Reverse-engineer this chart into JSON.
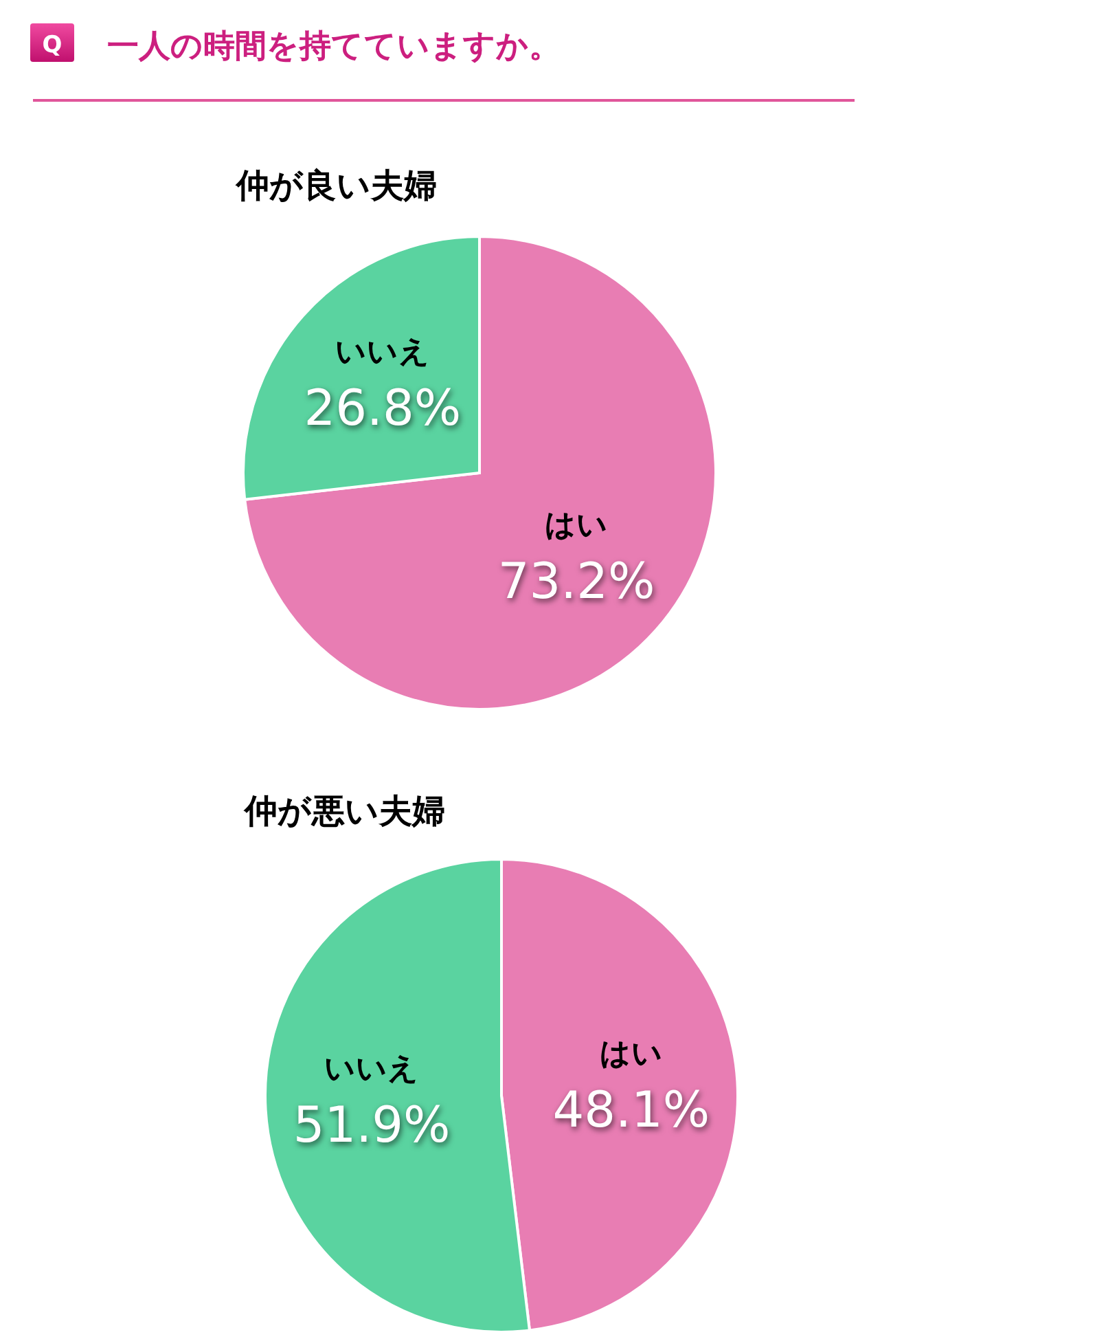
{
  "chart_data": [
    {
      "type": "other",
      "title": "一人の時間を持てていますか。",
      "annotations": [
        "Q"
      ]
    },
    {
      "type": "pie",
      "title": "仲が良い夫婦",
      "categories": [
        "はい",
        "いいえ"
      ],
      "values": [
        73.2,
        26.8
      ],
      "value_labels": [
        "73.2%",
        "26.8%"
      ],
      "colors": [
        "#e87db3",
        "#5ad3a0"
      ]
    },
    {
      "type": "pie",
      "title": "仲が悪い夫婦",
      "categories": [
        "はい",
        "いいえ"
      ],
      "values": [
        48.1,
        51.9
      ],
      "value_labels": [
        "48.1%",
        "51.9%"
      ],
      "colors": [
        "#e87db3",
        "#5ad3a0"
      ]
    }
  ]
}
